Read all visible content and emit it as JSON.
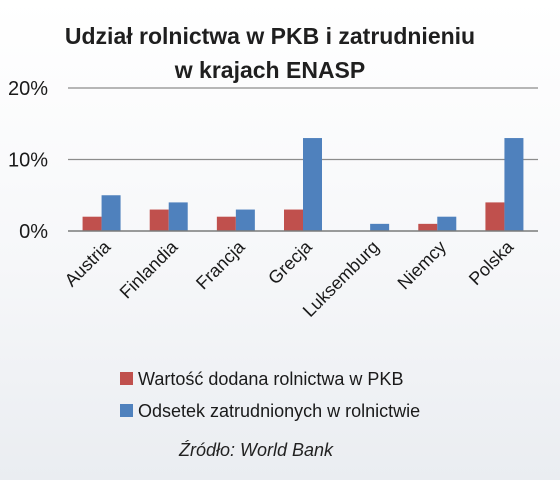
{
  "chart_data": {
    "type": "bar",
    "title_lines": [
      "Udział rolnictwa w PKB i zatrudnieniu",
      "w krajach ENASP"
    ],
    "categories": [
      "Austria",
      "Finlandia",
      "Francja",
      "Grecja",
      "Luksemburg",
      "Niemcy",
      "Polska"
    ],
    "series": [
      {
        "name": "Wartość dodana rolnictwa w PKB",
        "color": "#c0504d",
        "values": [
          2,
          3,
          2,
          3,
          0,
          1,
          4
        ]
      },
      {
        "name": "Odsetek zatrudnionych w rolnictwie",
        "color": "#4f81bd",
        "values": [
          5,
          4,
          3,
          13,
          1,
          2,
          13
        ]
      }
    ],
    "y_ticks": [
      0,
      10,
      20
    ],
    "y_tick_labels": [
      "0%",
      "10%",
      "20%"
    ],
    "ylim": [
      0,
      20
    ],
    "grid": true,
    "legend_position": "bottom",
    "source": "Źródło: World Bank"
  }
}
